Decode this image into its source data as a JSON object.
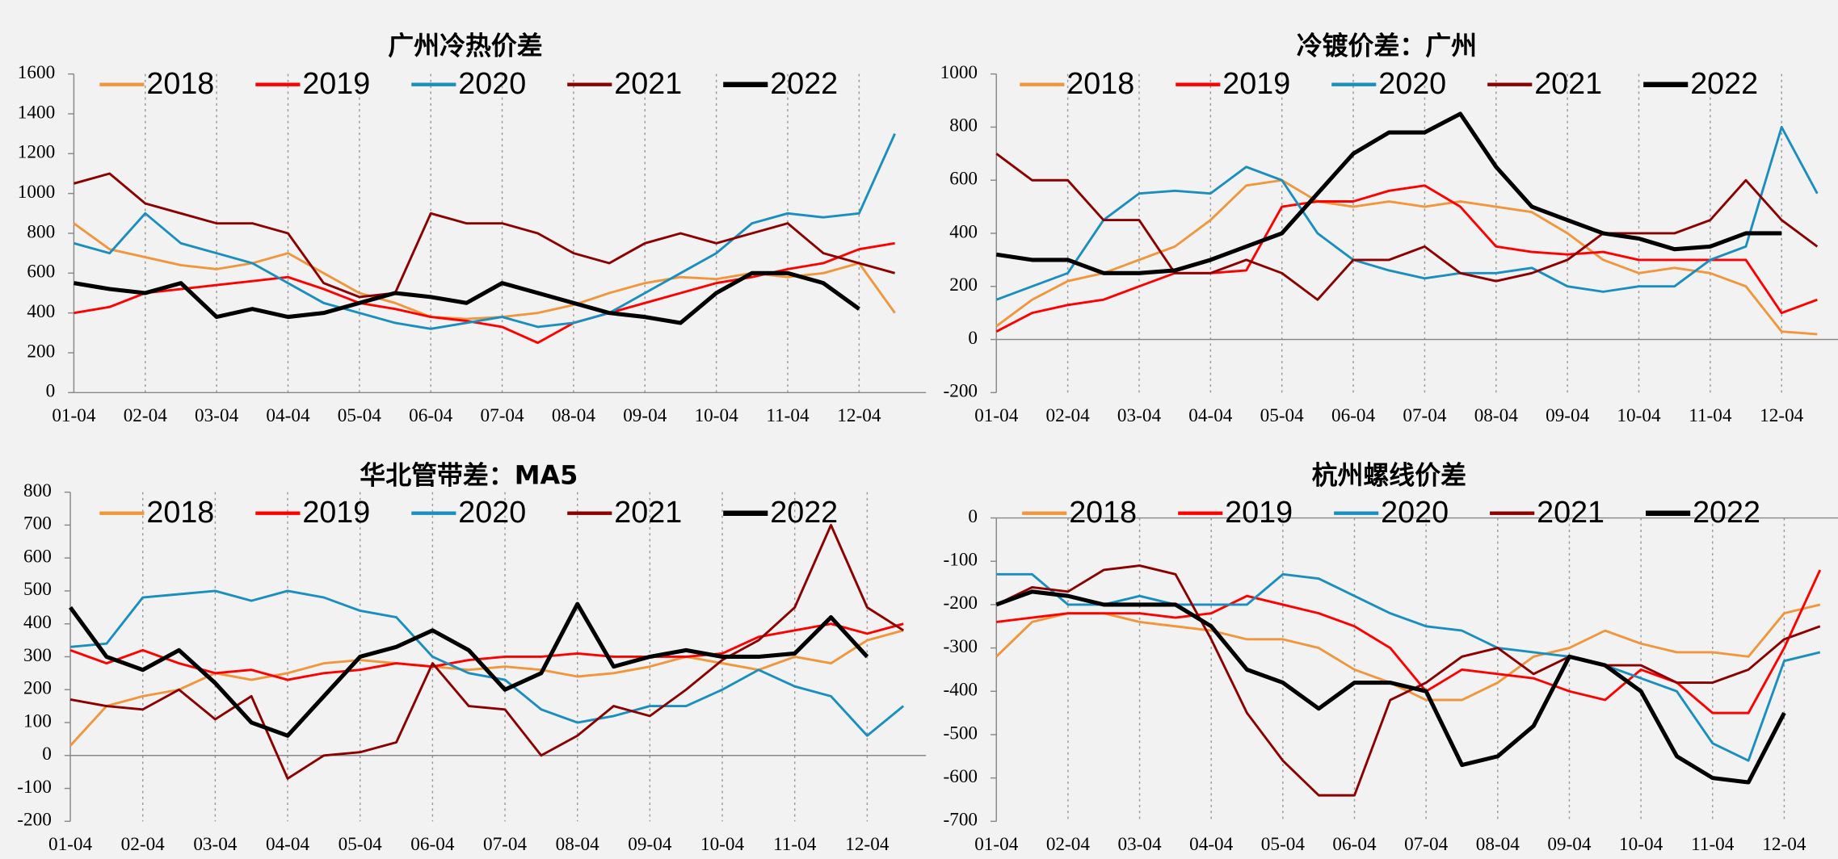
{
  "chart_data": [
    {
      "type": "line",
      "title": "广州冷热价差",
      "categories": [
        "01-04",
        null,
        "02-04",
        null,
        "03-04",
        null,
        "04-04",
        null,
        "05-04",
        null,
        "06-04",
        null,
        "07-04",
        null,
        "08-04",
        null,
        "09-04",
        null,
        "10-04",
        null,
        "11-04",
        null,
        "12-04",
        null
      ],
      "ylim": [
        0,
        1600
      ],
      "yticks": [
        0,
        200,
        400,
        600,
        800,
        1000,
        1200,
        1400,
        1600
      ],
      "xgrid": true,
      "series": [
        {
          "name": "2018",
          "color": "#f0963c",
          "values": [
            850,
            720,
            680,
            640,
            620,
            650,
            700,
            600,
            500,
            450,
            380,
            370,
            380,
            400,
            440,
            500,
            550,
            580,
            570,
            600,
            580,
            600,
            650,
            400
          ]
        },
        {
          "name": "2019",
          "color": "#ff0000",
          "values": [
            400,
            430,
            500,
            520,
            540,
            560,
            580,
            520,
            450,
            420,
            380,
            360,
            330,
            250,
            350,
            400,
            450,
            500,
            550,
            580,
            620,
            650,
            720,
            750
          ]
        },
        {
          "name": "2020",
          "color": "#1a8fbf",
          "values": [
            750,
            700,
            900,
            750,
            700,
            650,
            550,
            450,
            400,
            350,
            320,
            350,
            380,
            330,
            350,
            400,
            500,
            600,
            700,
            850,
            900,
            880,
            900,
            1300
          ]
        },
        {
          "name": "2021",
          "color": "#8b0000",
          "values": [
            1050,
            1100,
            950,
            900,
            850,
            850,
            800,
            550,
            480,
            500,
            900,
            850,
            850,
            800,
            700,
            650,
            750,
            800,
            750,
            800,
            850,
            700,
            650,
            600
          ]
        },
        {
          "name": "2022",
          "color": "#000000",
          "values": [
            550,
            520,
            500,
            550,
            380,
            420,
            380,
            400,
            450,
            500,
            480,
            450,
            550,
            500,
            450,
            400,
            380,
            350,
            500,
            600,
            600,
            550,
            420,
            null
          ]
        }
      ]
    },
    {
      "type": "line",
      "title": "冷镀价差：广州",
      "categories": [
        "01-04",
        null,
        "02-04",
        null,
        "03-04",
        null,
        "04-04",
        null,
        "05-04",
        null,
        "06-04",
        null,
        "07-04",
        null,
        "08-04",
        null,
        "09-04",
        null,
        "10-04",
        null,
        "11-04",
        null,
        "12-04",
        null
      ],
      "ylim": [
        -200,
        1000
      ],
      "yticks": [
        -200,
        0,
        200,
        400,
        600,
        800,
        1000
      ],
      "xgrid": true,
      "series": [
        {
          "name": "2018",
          "color": "#f0963c",
          "values": [
            50,
            150,
            220,
            250,
            300,
            350,
            450,
            580,
            600,
            520,
            500,
            520,
            500,
            520,
            500,
            480,
            400,
            300,
            250,
            270,
            250,
            200,
            30,
            20
          ]
        },
        {
          "name": "2019",
          "color": "#ff0000",
          "values": [
            30,
            100,
            130,
            150,
            200,
            250,
            250,
            260,
            500,
            520,
            520,
            560,
            580,
            500,
            350,
            330,
            320,
            330,
            300,
            300,
            300,
            300,
            100,
            150
          ]
        },
        {
          "name": "2020",
          "color": "#1a8fbf",
          "values": [
            150,
            200,
            250,
            450,
            550,
            560,
            550,
            650,
            600,
            400,
            300,
            260,
            230,
            250,
            250,
            270,
            200,
            180,
            200,
            200,
            300,
            350,
            800,
            550
          ]
        },
        {
          "name": "2021",
          "color": "#8b0000",
          "values": [
            700,
            600,
            600,
            450,
            450,
            250,
            250,
            300,
            250,
            150,
            300,
            300,
            350,
            250,
            220,
            250,
            300,
            400,
            400,
            400,
            450,
            600,
            450,
            350
          ]
        },
        {
          "name": "2022",
          "color": "#000000",
          "values": [
            320,
            300,
            300,
            250,
            250,
            260,
            300,
            350,
            400,
            550,
            700,
            780,
            780,
            850,
            650,
            500,
            450,
            400,
            380,
            340,
            350,
            400,
            400,
            null
          ]
        }
      ]
    },
    {
      "type": "line",
      "title": "华北管带差：MA5",
      "categories": [
        "01-04",
        null,
        "02-04",
        null,
        "03-04",
        null,
        "04-04",
        null,
        "05-04",
        null,
        "06-04",
        null,
        "07-04",
        null,
        "08-04",
        null,
        "09-04",
        null,
        "10-04",
        null,
        "11-04",
        null,
        "12-04",
        null
      ],
      "ylim": [
        -200,
        800
      ],
      "yticks": [
        -200,
        -100,
        0,
        100,
        200,
        300,
        400,
        500,
        600,
        700,
        800
      ],
      "xgrid": true,
      "series": [
        {
          "name": "2018",
          "color": "#f0963c",
          "values": [
            30,
            150,
            180,
            200,
            250,
            230,
            250,
            280,
            290,
            280,
            270,
            260,
            270,
            260,
            240,
            250,
            270,
            300,
            280,
            260,
            300,
            280,
            350,
            380
          ]
        },
        {
          "name": "2019",
          "color": "#ff0000",
          "values": [
            320,
            280,
            320,
            280,
            250,
            260,
            230,
            250,
            260,
            280,
            270,
            290,
            300,
            300,
            310,
            300,
            300,
            300,
            310,
            360,
            380,
            400,
            370,
            400
          ]
        },
        {
          "name": "2020",
          "color": "#1a8fbf",
          "values": [
            330,
            340,
            480,
            490,
            500,
            470,
            500,
            480,
            440,
            420,
            300,
            250,
            230,
            140,
            100,
            120,
            150,
            150,
            200,
            260,
            210,
            180,
            60,
            150
          ]
        },
        {
          "name": "2021",
          "color": "#8b0000",
          "values": [
            170,
            150,
            140,
            200,
            110,
            180,
            -70,
            0,
            10,
            40,
            280,
            150,
            140,
            0,
            60,
            150,
            120,
            200,
            290,
            350,
            450,
            700,
            450,
            380
          ]
        },
        {
          "name": "2022",
          "color": "#000000",
          "values": [
            450,
            300,
            260,
            320,
            220,
            100,
            60,
            180,
            300,
            330,
            380,
            320,
            200,
            250,
            460,
            270,
            300,
            320,
            300,
            300,
            310,
            420,
            300,
            null
          ]
        }
      ]
    },
    {
      "type": "line",
      "title": "杭州螺线价差",
      "categories": [
        "01-04",
        null,
        "02-04",
        null,
        "03-04",
        null,
        "04-04",
        null,
        "05-04",
        null,
        "06-04",
        null,
        "07-04",
        null,
        "08-04",
        null,
        "09-04",
        null,
        "10-04",
        null,
        "11-04",
        null,
        "12-04",
        null
      ],
      "ylim": [
        -700,
        0
      ],
      "yticks": [
        -700,
        -600,
        -500,
        -400,
        -300,
        -200,
        -100,
        0
      ],
      "xgrid": true,
      "series": [
        {
          "name": "2018",
          "color": "#f0963c",
          "values": [
            -320,
            -240,
            -220,
            -220,
            -240,
            -250,
            -260,
            -280,
            -280,
            -300,
            -350,
            -380,
            -420,
            -420,
            -380,
            -320,
            -300,
            -260,
            -290,
            -310,
            -310,
            -320,
            -220,
            -200
          ]
        },
        {
          "name": "2019",
          "color": "#ff0000",
          "values": [
            -240,
            -230,
            -220,
            -220,
            -220,
            -230,
            -220,
            -180,
            -200,
            -220,
            -250,
            -300,
            -400,
            -350,
            -360,
            -370,
            -400,
            -420,
            -350,
            -380,
            -450,
            -450,
            -300,
            -120
          ]
        },
        {
          "name": "2020",
          "color": "#1a8fbf",
          "values": [
            -130,
            -130,
            -200,
            -200,
            -180,
            -200,
            -200,
            -200,
            -130,
            -140,
            -180,
            -220,
            -250,
            -260,
            -300,
            -310,
            -320,
            -340,
            -370,
            -400,
            -520,
            -560,
            -330,
            -310
          ]
        },
        {
          "name": "2021",
          "color": "#8b0000",
          "values": [
            -200,
            -160,
            -170,
            -120,
            -110,
            -130,
            -280,
            -450,
            -560,
            -640,
            -640,
            -420,
            -380,
            -320,
            -300,
            -360,
            -320,
            -340,
            -340,
            -380,
            -380,
            -350,
            -280,
            -250
          ]
        },
        {
          "name": "2022",
          "color": "#000000",
          "values": [
            -200,
            -170,
            -180,
            -200,
            -200,
            -200,
            -250,
            -350,
            -380,
            -440,
            -380,
            -380,
            -400,
            -570,
            -550,
            -480,
            -320,
            -340,
            -400,
            -550,
            -600,
            -610,
            -450,
            null
          ]
        }
      ]
    }
  ]
}
